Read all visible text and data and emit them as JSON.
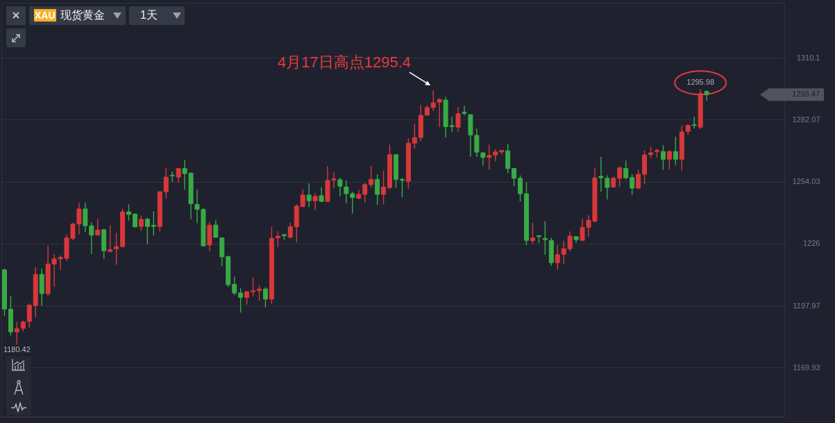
{
  "chart_data": {
    "type": "candlestick",
    "title": "XAU 现货黄金",
    "subtitle": "1天",
    "categories": [
      null,
      null,
      null,
      null,
      null,
      null,
      null,
      null,
      null,
      null,
      null,
      null,
      null,
      null,
      null,
      null,
      null,
      null,
      null,
      null,
      null,
      null,
      null,
      null,
      null,
      null,
      null,
      null,
      null,
      null,
      null,
      null,
      null,
      null,
      null,
      null,
      null,
      null,
      null,
      null,
      null,
      null,
      null,
      null,
      null,
      null,
      null,
      null,
      null,
      null,
      null,
      null,
      null,
      null,
      null,
      null,
      null,
      null,
      null,
      null,
      null,
      null,
      null,
      null,
      null,
      null,
      null,
      null,
      null,
      null,
      null,
      null,
      null,
      null,
      null,
      null,
      null,
      null,
      null,
      null,
      null,
      null,
      null,
      null,
      null,
      null,
      null,
      null,
      null,
      null,
      null,
      null,
      null,
      null,
      null,
      null,
      null,
      null,
      null,
      null,
      null,
      null,
      null,
      null,
      null,
      null,
      null,
      null,
      null,
      null,
      null,
      null,
      null,
      null,
      null,
      null,
      null,
      null,
      null,
      null,
      null,
      null,
      null,
      null,
      null,
      null
    ],
    "ohlc": [
      [
        1214.2,
        1214.6,
        1193.3,
        1196.4
      ],
      [
        1196.4,
        1202.2,
        1184.4,
        1186.1
      ],
      [
        1186.1,
        1190.6,
        1180.42,
        1187.5
      ],
      [
        1187.7,
        1191.2,
        1186.4,
        1190.6
      ],
      [
        1190.8,
        1199.0,
        1188.0,
        1198.2
      ],
      [
        1198.0,
        1215.3,
        1192.7,
        1212.1
      ],
      [
        1212.1,
        1214.7,
        1198.0,
        1203.4
      ],
      [
        1203.4,
        1225.2,
        1202.2,
        1216.8
      ],
      [
        1216.8,
        1221.2,
        1206.6,
        1219.1
      ],
      [
        1219.1,
        1220.7,
        1214.2,
        1219.8
      ],
      [
        1219.4,
        1230.1,
        1218.2,
        1228.6
      ],
      [
        1228.4,
        1235.5,
        1227.5,
        1234.9
      ],
      [
        1234.9,
        1244.6,
        1230.3,
        1241.7
      ],
      [
        1241.7,
        1244.6,
        1231.2,
        1234.1
      ],
      [
        1234.1,
        1235.7,
        1221.3,
        1229.9
      ],
      [
        1229.9,
        1237.1,
        1229.9,
        1232.2
      ],
      [
        1232.3,
        1232.8,
        1219.1,
        1222.8
      ],
      [
        1222.5,
        1234.4,
        1222.1,
        1223.3
      ],
      [
        1223.7,
        1231.0,
        1216.5,
        1224.7
      ],
      [
        1224.7,
        1241.8,
        1224.2,
        1240.4
      ],
      [
        1240.4,
        1243.8,
        1236.4,
        1239.2
      ],
      [
        1239.4,
        1239.7,
        1233.3,
        1233.6
      ],
      [
        1233.8,
        1238.8,
        1231.8,
        1237.0
      ],
      [
        1237.1,
        1237.8,
        1225.7,
        1233.8
      ],
      [
        1234.3,
        1240.7,
        1229.7,
        1233.8
      ],
      [
        1233.8,
        1249.7,
        1231.5,
        1249.5
      ],
      [
        1249.5,
        1260.3,
        1246.4,
        1256.1
      ],
      [
        1257.0,
        1258.6,
        1254.0,
        1256.7
      ],
      [
        1256.1,
        1260.3,
        1253.5,
        1260.0
      ],
      [
        1260.0,
        1264.0,
        1250.4,
        1257.7
      ],
      [
        1257.9,
        1258.2,
        1237.0,
        1244.1
      ],
      [
        1243.8,
        1250.4,
        1235.2,
        1241.5
      ],
      [
        1241.5,
        1242.2,
        1224.7,
        1225.0
      ],
      [
        1225.4,
        1235.9,
        1222.6,
        1234.4
      ],
      [
        1234.4,
        1236.6,
        1228.6,
        1228.9
      ],
      [
        1228.6,
        1228.9,
        1215.8,
        1220.0
      ],
      [
        1220.2,
        1220.5,
        1206.4,
        1207.4
      ],
      [
        1207.6,
        1211.1,
        1202.7,
        1203.7
      ],
      [
        1203.7,
        1205.8,
        1194.8,
        1201.7
      ],
      [
        1201.7,
        1204.3,
        1198.5,
        1204.3
      ],
      [
        1204.3,
        1210.8,
        1202.2,
        1204.8
      ],
      [
        1204.8,
        1207.2,
        1200.1,
        1205.5
      ],
      [
        1205.5,
        1206.4,
        1197.1,
        1200.9
      ],
      [
        1200.9,
        1233.6,
        1198.8,
        1228.4
      ],
      [
        1228.6,
        1231.7,
        1224.4,
        1229.4
      ],
      [
        1230.1,
        1230.4,
        1227.8,
        1229.6
      ],
      [
        1228.9,
        1235.5,
        1228.4,
        1233.6
      ],
      [
        1233.6,
        1243.9,
        1226.5,
        1243.0
      ],
      [
        1242.8,
        1250.6,
        1242.5,
        1248.0
      ],
      [
        1248.0,
        1253.3,
        1242.5,
        1245.4
      ],
      [
        1245.4,
        1248.8,
        1241.1,
        1247.4
      ],
      [
        1247.7,
        1251.6,
        1244.9,
        1245.1
      ],
      [
        1245.1,
        1261.1,
        1244.9,
        1254.6
      ],
      [
        1254.8,
        1258.2,
        1251.2,
        1255.3
      ],
      [
        1254.9,
        1255.8,
        1247.4,
        1252.0
      ],
      [
        1251.7,
        1254.6,
        1244.3,
        1248.6
      ],
      [
        1248.6,
        1249.5,
        1239.7,
        1246.9
      ],
      [
        1246.5,
        1250.4,
        1246.2,
        1248.3
      ],
      [
        1248.3,
        1253.5,
        1244.6,
        1252.7
      ],
      [
        1252.7,
        1261.1,
        1251.4,
        1255.1
      ],
      [
        1255.1,
        1257.4,
        1243.6,
        1248.3
      ],
      [
        1248.3,
        1259.0,
        1243.9,
        1251.7
      ],
      [
        1251.4,
        1270.8,
        1250.6,
        1266.3
      ],
      [
        1266.3,
        1266.3,
        1251.2,
        1255.1
      ],
      [
        1255.1,
        1255.8,
        1247.0,
        1254.6
      ],
      [
        1254.2,
        1273.7,
        1250.9,
        1271.5
      ],
      [
        1271.5,
        1280.3,
        1269.0,
        1274.0
      ],
      [
        1274.0,
        1288.9,
        1272.4,
        1284.1
      ],
      [
        1284.1,
        1288.6,
        1284.1,
        1287.6
      ],
      [
        1287.6,
        1295.4,
        1286.0,
        1289.7
      ],
      [
        1290.0,
        1291.8,
        1278.9,
        1291.3
      ],
      [
        1291.0,
        1292.5,
        1274.0,
        1278.9
      ],
      [
        1279.4,
        1283.4,
        1276.6,
        1279.0
      ],
      [
        1278.7,
        1287.9,
        1276.8,
        1284.8
      ],
      [
        1285.5,
        1288.4,
        1284.1,
        1285.0
      ],
      [
        1284.4,
        1284.4,
        1265.3,
        1275.2
      ],
      [
        1275.0,
        1278.1,
        1265.3,
        1267.4
      ],
      [
        1267.1,
        1267.4,
        1261.4,
        1265.0
      ],
      [
        1265.0,
        1270.8,
        1259.6,
        1265.9
      ],
      [
        1266.1,
        1268.7,
        1263.2,
        1267.5
      ],
      [
        1267.5,
        1268.4,
        1266.3,
        1268.2
      ],
      [
        1268.0,
        1271.1,
        1257.9,
        1260.0
      ],
      [
        1260.0,
        1260.3,
        1252.0,
        1255.6
      ],
      [
        1255.6,
        1256.9,
        1245.1,
        1248.6
      ],
      [
        1248.6,
        1253.8,
        1225.4,
        1227.5
      ],
      [
        1227.3,
        1235.5,
        1226.0,
        1228.6
      ],
      [
        1229.6,
        1229.9,
        1226.3,
        1229.2
      ],
      [
        1228.4,
        1236.2,
        1221.0,
        1227.8
      ],
      [
        1227.5,
        1228.6,
        1216.0,
        1217.4
      ],
      [
        1217.4,
        1225.4,
        1214.2,
        1221.0
      ],
      [
        1221.2,
        1227.3,
        1216.8,
        1223.7
      ],
      [
        1223.7,
        1231.5,
        1222.6,
        1229.4
      ],
      [
        1229.2,
        1229.4,
        1226.5,
        1227.8
      ],
      [
        1227.5,
        1237.3,
        1227.1,
        1233.4
      ],
      [
        1233.4,
        1238.8,
        1229.2,
        1236.6
      ],
      [
        1236.2,
        1260.3,
        1235.7,
        1255.8
      ],
      [
        1256.5,
        1265.3,
        1249.5,
        1255.8
      ],
      [
        1255.6,
        1256.9,
        1246.0,
        1251.4
      ],
      [
        1251.7,
        1256.4,
        1251.2,
        1255.6
      ],
      [
        1255.6,
        1260.9,
        1251.7,
        1260.3
      ],
      [
        1260.0,
        1263.7,
        1255.1,
        1255.8
      ],
      [
        1255.9,
        1257.4,
        1248.1,
        1251.1
      ],
      [
        1251.1,
        1259.5,
        1250.9,
        1257.4
      ],
      [
        1257.4,
        1268.2,
        1253.0,
        1266.1
      ],
      [
        1266.3,
        1269.8,
        1264.8,
        1267.1
      ],
      [
        1267.7,
        1268.9,
        1265.0,
        1268.2
      ],
      [
        1267.7,
        1270.6,
        1259.3,
        1264.2
      ],
      [
        1264.2,
        1268.4,
        1259.6,
        1267.7
      ],
      [
        1267.7,
        1274.3,
        1261.6,
        1264.2
      ],
      [
        1264.2,
        1279.5,
        1259.0,
        1276.6
      ],
      [
        1276.8,
        1279.9,
        1275.3,
        1279.5
      ],
      [
        1279.9,
        1283.4,
        1278.1,
        1279.5
      ],
      [
        1278.7,
        1295.98,
        1277.8,
        1293.9
      ],
      [
        1294.9,
        1295.3,
        1290.7,
        1293.47
      ],
      null,
      null,
      null,
      null,
      null,
      null,
      null,
      null,
      null,
      null,
      null,
      null
    ],
    "colors": [
      "#3aaa45",
      "#3aaa45",
      "#d8383a",
      "#d8383a",
      "#d8383a",
      "#d8383a",
      "#3aaa45",
      "#d8383a",
      "#d8383a",
      "#d8383a",
      "#d8383a",
      "#d8383a",
      "#d8383a",
      "#3aaa45",
      "#3aaa45",
      "#d8383a",
      "#3aaa45",
      "#d8383a",
      "#d8383a",
      "#d8383a",
      "#3aaa45",
      "#3aaa45",
      "#d8383a",
      "#3aaa45",
      "#3aaa45",
      "#d8383a",
      "#d8383a",
      "#3aaa45",
      "#d8383a",
      "#3aaa45",
      "#3aaa45",
      "#3aaa45",
      "#3aaa45",
      "#d8383a",
      "#3aaa45",
      "#3aaa45",
      "#3aaa45",
      "#3aaa45",
      "#3aaa45",
      "#d8383a",
      "#d8383a",
      "#d8383a",
      "#3aaa45",
      "#d8383a",
      "#d8383a",
      "#3aaa45",
      "#d8383a",
      "#d8383a",
      "#d8383a",
      "#3aaa45",
      "#d8383a",
      "#3aaa45",
      "#d8383a",
      "#d8383a",
      "#3aaa45",
      "#3aaa45",
      "#3aaa45",
      "#d8383a",
      "#d8383a",
      "#d8383a",
      "#3aaa45",
      "#d8383a",
      "#d8383a",
      "#3aaa45",
      "#3aaa45",
      "#d8383a",
      "#d8383a",
      "#d8383a",
      "#d8383a",
      "#d8383a",
      "#d8383a",
      "#3aaa45",
      "#3aaa45",
      "#d8383a",
      "#3aaa45",
      "#3aaa45",
      "#3aaa45",
      "#3aaa45",
      "#d8383a",
      "#d8383a",
      "#d8383a",
      "#3aaa45",
      "#3aaa45",
      "#3aaa45",
      "#3aaa45",
      "#d8383a",
      "#3aaa45",
      "#3aaa45",
      "#3aaa45",
      "#d8383a",
      "#d8383a",
      "#d8383a",
      "#3aaa45",
      "#d8383a",
      "#d8383a",
      "#d8383a",
      "#3aaa45",
      "#3aaa45",
      "#d8383a",
      "#d8383a",
      "#3aaa45",
      "#3aaa45",
      "#d8383a",
      "#d8383a",
      "#d8383a",
      "#d8383a",
      "#3aaa45",
      "#d8383a",
      "#3aaa45",
      "#d8383a",
      "#d8383a",
      "#3aaa45",
      "#d8383a",
      "#3aaa45",
      null,
      null,
      null,
      null,
      null,
      null,
      null,
      null,
      null,
      null,
      null,
      null
    ],
    "ylim": [
      1147.7,
      1335.0
    ],
    "yticks": [
      1169.93,
      1197.97,
      1226,
      1254.03,
      1282.07,
      1310.1
    ],
    "grid": "y",
    "annotations": [
      "4月17日高点1295.4",
      {
        "text": "1295.98",
        "y": 1295.98
      },
      {
        "text": "1180.42",
        "y": 1180.42
      },
      "1293.47"
    ]
  }
}
